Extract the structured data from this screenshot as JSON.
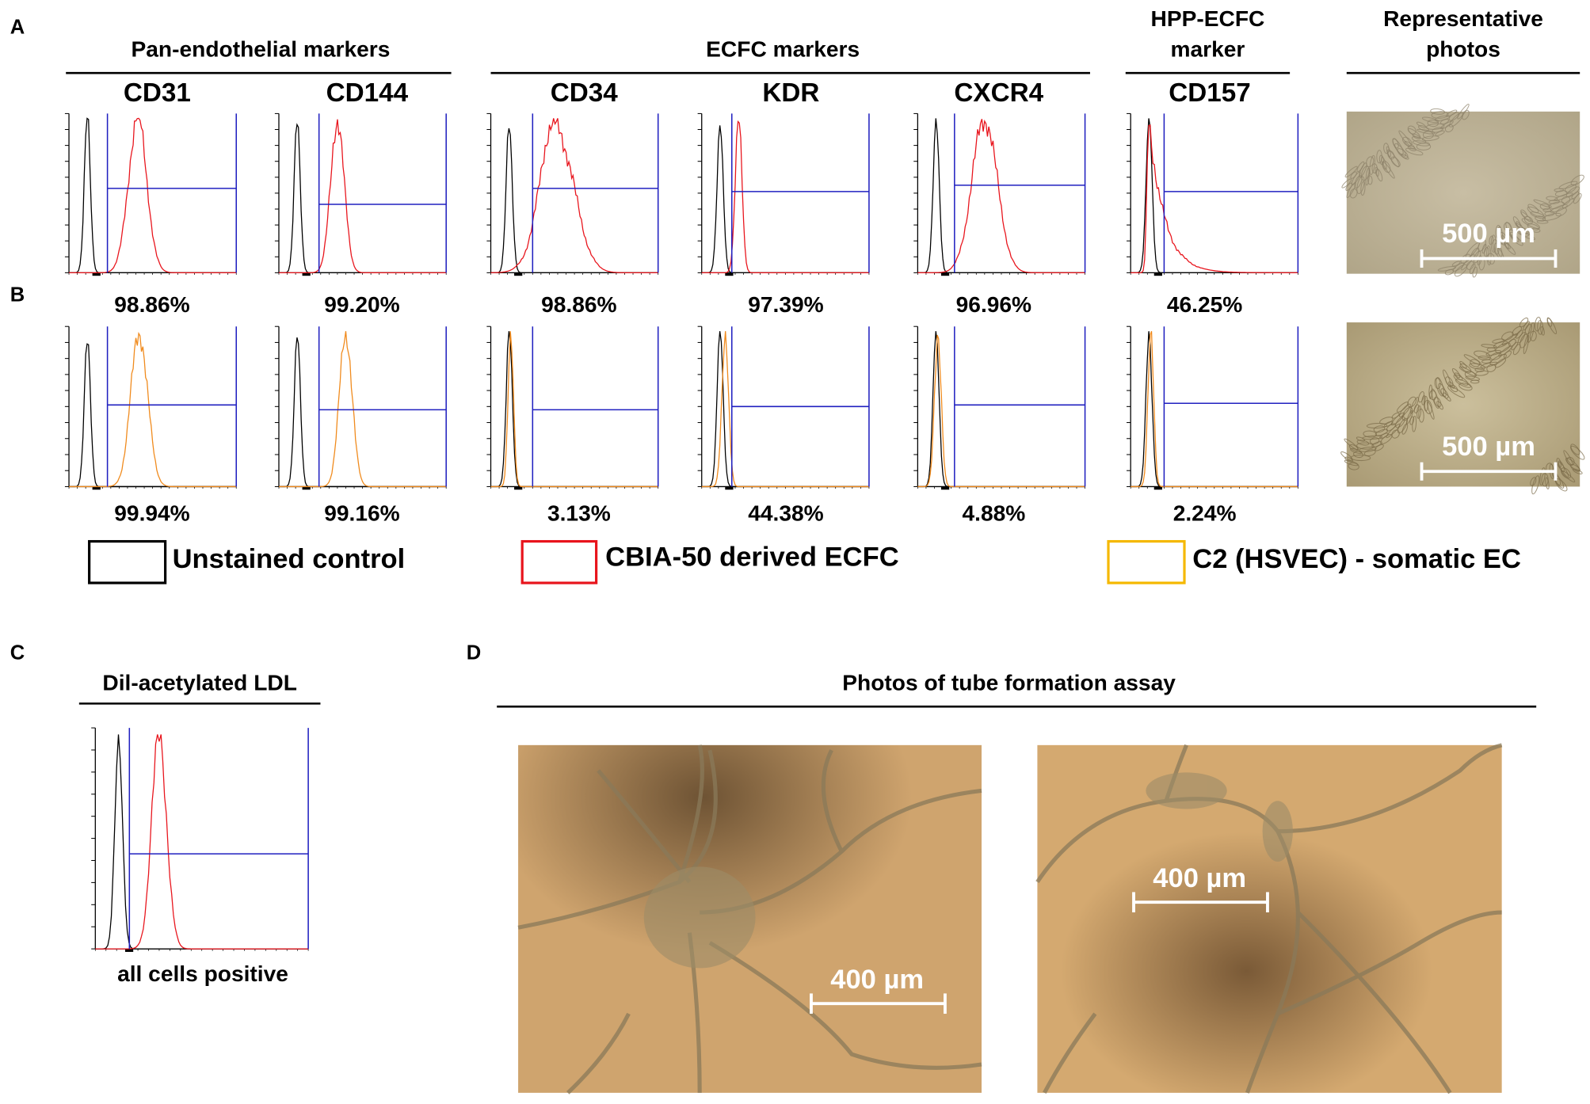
{
  "panels": {
    "a": "A",
    "b": "B",
    "c": "C",
    "d": "D"
  },
  "groups": [
    {
      "title": "Pan-endothelial markers"
    },
    {
      "title": "ECFC markers"
    },
    {
      "title_1": "HPP-ECFC",
      "title_2": "marker"
    },
    {
      "title_1": "Representative",
      "title_2": "photos"
    }
  ],
  "markers": [
    {
      "name": "CD31",
      "row_a": "98.86%",
      "row_b": "99.94%"
    },
    {
      "name": "CD144",
      "row_a": "99.20%",
      "row_b": "99.16%"
    },
    {
      "name": "CD34",
      "row_a": "98.86%",
      "row_b": "3.13%"
    },
    {
      "name": "KDR",
      "row_a": "97.39%",
      "row_b": "44.38%"
    },
    {
      "name": "CXCR4",
      "row_a": "96.96%",
      "row_b": "4.88%"
    },
    {
      "name": "CD157",
      "row_a": "46.25%",
      "row_b": "2.24%"
    }
  ],
  "photos": {
    "scale_a": "500 µm",
    "scale_b": "500 µm"
  },
  "legend": [
    "Unstained control",
    "CBIA-50 derived ECFC",
    "C2 (HSVEC) - somatic EC"
  ],
  "panel_c": {
    "title": "Dil-acetylated LDL",
    "caption": "all cells positive"
  },
  "panel_d": {
    "title": "Photos of tube formation assay",
    "scale_1": "400 µm",
    "scale_2": "400 µm"
  }
}
